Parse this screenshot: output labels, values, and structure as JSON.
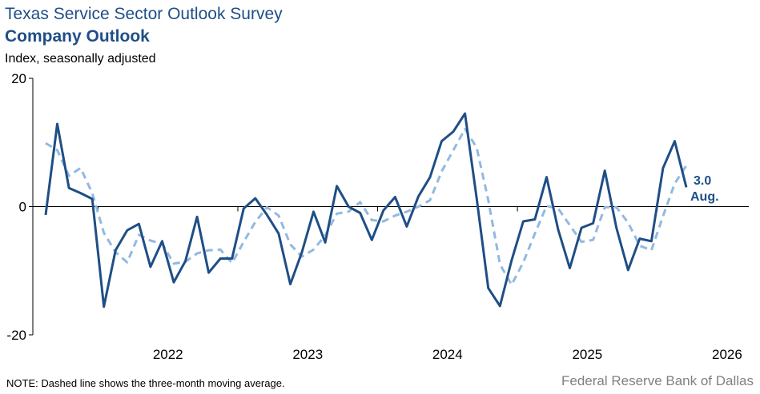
{
  "header": {
    "title": "Texas Service Sector Outlook Survey",
    "subtitle": "Company Outlook",
    "units": "Index, seasonally adjusted"
  },
  "footer": {
    "note": "NOTE: Dashed line shows the three-month  moving average.",
    "source": "Federal Reserve Bank of Dallas"
  },
  "colors": {
    "series": "#1f4e86",
    "moving_average": "#92b9e0",
    "title": "#1f4e86",
    "source": "#808080"
  },
  "chart_data": {
    "type": "line",
    "x_start": "2021-08",
    "x_end": "2026-08",
    "ylim": [
      -20,
      20
    ],
    "yticks": [
      20,
      0,
      -20
    ],
    "xtick_labels": [
      "2022",
      "2023",
      "2024",
      "2025",
      "2026"
    ],
    "grid": false,
    "series": [
      {
        "style": "solid",
        "values": [
          -1.3,
          12.9,
          2.9,
          2.1,
          1.2,
          -15.6,
          -6.8,
          -3.7,
          -2.7,
          -9.4,
          -5.4,
          -11.8,
          -8.5,
          -1.6,
          -10.3,
          -8.1,
          -8.1,
          -0.3,
          1.3,
          -1.3,
          -4.2,
          -12.1,
          -7.1,
          -0.8,
          -5.6,
          3.2,
          0,
          -1.0,
          -5.2,
          -0.6,
          1.5,
          -3.1,
          1.6,
          4.6,
          10.2,
          11.7,
          14.5,
          1.3,
          -12.7,
          -15.5,
          -8.4,
          -2.3,
          -2.0,
          4.6,
          -3.6,
          -9.6,
          -3.3,
          -2.6,
          5.6,
          -3.3,
          -9.9,
          -5.0,
          -5.4,
          6.0,
          10.2,
          3.0
        ]
      },
      {
        "style": "dashed",
        "values": [
          9.9,
          8.8,
          4.8,
          6.0,
          2.1,
          -4.1,
          -7.1,
          -8.7,
          -4.4,
          -5.3,
          -5.8,
          -8.9,
          -8.6,
          -7.3,
          -6.8,
          -6.7,
          -8.8,
          -5.5,
          -2.4,
          -0.1,
          -1.4,
          -5.9,
          -7.8,
          -6.7,
          -4.5,
          -1.1,
          -0.8,
          0.7,
          -2.1,
          -2.3,
          -1.4,
          -0.8,
          0,
          1.0,
          5.5,
          8.8,
          12.1,
          9.2,
          1.0,
          -9.0,
          -12.2,
          -8.7,
          -4.2,
          0.1,
          -0.3,
          -2.9,
          -5.5,
          -5.2,
          -0.1,
          -0.1,
          -2.5,
          -6.1,
          -6.8,
          -1.5,
          3.6,
          6.4
        ]
      }
    ],
    "annotation": {
      "value": "3.0",
      "label": "Aug."
    }
  }
}
